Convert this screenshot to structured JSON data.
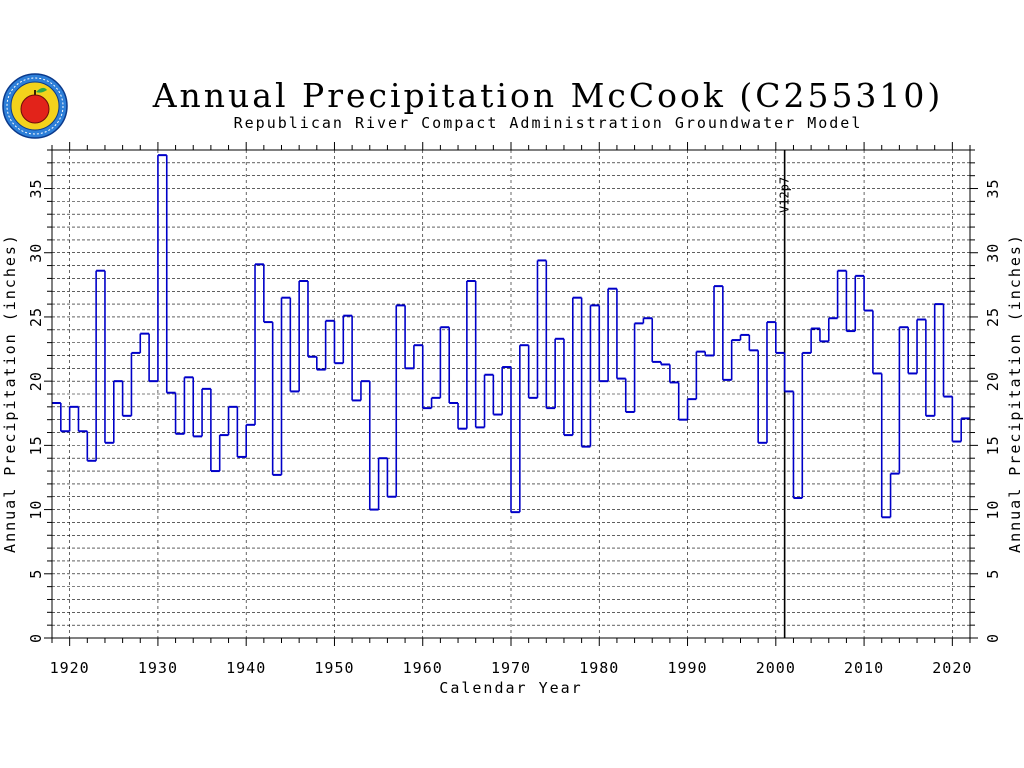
{
  "chart_data": {
    "type": "line",
    "style": "step",
    "title": "Annual Precipitation McCook (C255310)",
    "subtitle": "Republican River Compact Administration Groundwater Model",
    "xlabel": "Calendar Year",
    "ylabel_left": "Annual Precipitation (inches)",
    "ylabel_right": "Annual Precipitation (inches)",
    "xlim": [
      1918,
      2022
    ],
    "ylim": [
      0,
      38
    ],
    "x_ticks": [
      1920,
      1930,
      1940,
      1950,
      1960,
      1970,
      1980,
      1990,
      2000,
      2010,
      2020
    ],
    "y_ticks": [
      0,
      5,
      10,
      15,
      20,
      25,
      30,
      35
    ],
    "grid": true,
    "series": [
      {
        "color": "#0000c8",
        "x": [
          1918,
          1919,
          1920,
          1921,
          1922,
          1923,
          1924,
          1925,
          1926,
          1927,
          1928,
          1929,
          1930,
          1931,
          1932,
          1933,
          1934,
          1935,
          1936,
          1937,
          1938,
          1939,
          1940,
          1941,
          1942,
          1943,
          1944,
          1945,
          1946,
          1947,
          1948,
          1949,
          1950,
          1951,
          1952,
          1953,
          1954,
          1955,
          1956,
          1957,
          1958,
          1959,
          1960,
          1961,
          1962,
          1963,
          1964,
          1965,
          1966,
          1967,
          1968,
          1969,
          1970,
          1971,
          1972,
          1973,
          1974,
          1975,
          1976,
          1977,
          1978,
          1979,
          1980,
          1981,
          1982,
          1983,
          1984,
          1985,
          1986,
          1987,
          1988,
          1989,
          1990,
          1991,
          1992,
          1993,
          1994,
          1995,
          1996,
          1997,
          1998,
          1999,
          2000,
          2001,
          2002,
          2003,
          2004,
          2005,
          2006,
          2007,
          2008,
          2009,
          2010,
          2011,
          2012,
          2013,
          2014,
          2015,
          2016,
          2017,
          2018,
          2019,
          2020,
          2021
        ],
        "values": [
          18.3,
          16.1,
          18.0,
          16.1,
          13.8,
          28.6,
          15.2,
          20.0,
          17.3,
          22.2,
          23.7,
          20.0,
          37.6,
          19.1,
          15.9,
          20.3,
          15.7,
          19.4,
          13.0,
          15.8,
          18.0,
          14.1,
          16.6,
          29.1,
          24.6,
          12.7,
          26.5,
          19.2,
          27.8,
          21.9,
          20.9,
          24.7,
          21.4,
          25.1,
          18.5,
          20.0,
          10.0,
          14.0,
          11.0,
          25.9,
          21.0,
          22.8,
          17.9,
          18.7,
          24.2,
          18.3,
          16.3,
          27.8,
          16.4,
          20.5,
          17.4,
          21.1,
          9.8,
          22.8,
          18.7,
          29.4,
          17.9,
          23.3,
          15.8,
          26.5,
          14.9,
          25.9,
          20.0,
          27.2,
          20.2,
          17.6,
          24.5,
          24.9,
          21.5,
          21.3,
          19.9,
          17.0,
          18.6,
          22.3,
          22.0,
          27.4,
          20.1,
          23.2,
          23.6,
          22.4,
          15.2,
          24.6,
          22.2,
          19.2,
          10.9,
          22.2,
          24.1,
          23.1,
          24.9,
          28.6,
          23.9,
          28.2,
          25.5,
          20.6,
          9.4,
          12.8,
          24.2,
          20.6,
          24.8,
          17.3,
          26.0,
          18.8,
          15.3,
          17.1
        ]
      }
    ],
    "marker": {
      "year": 2001,
      "label": "V12p7"
    }
  }
}
